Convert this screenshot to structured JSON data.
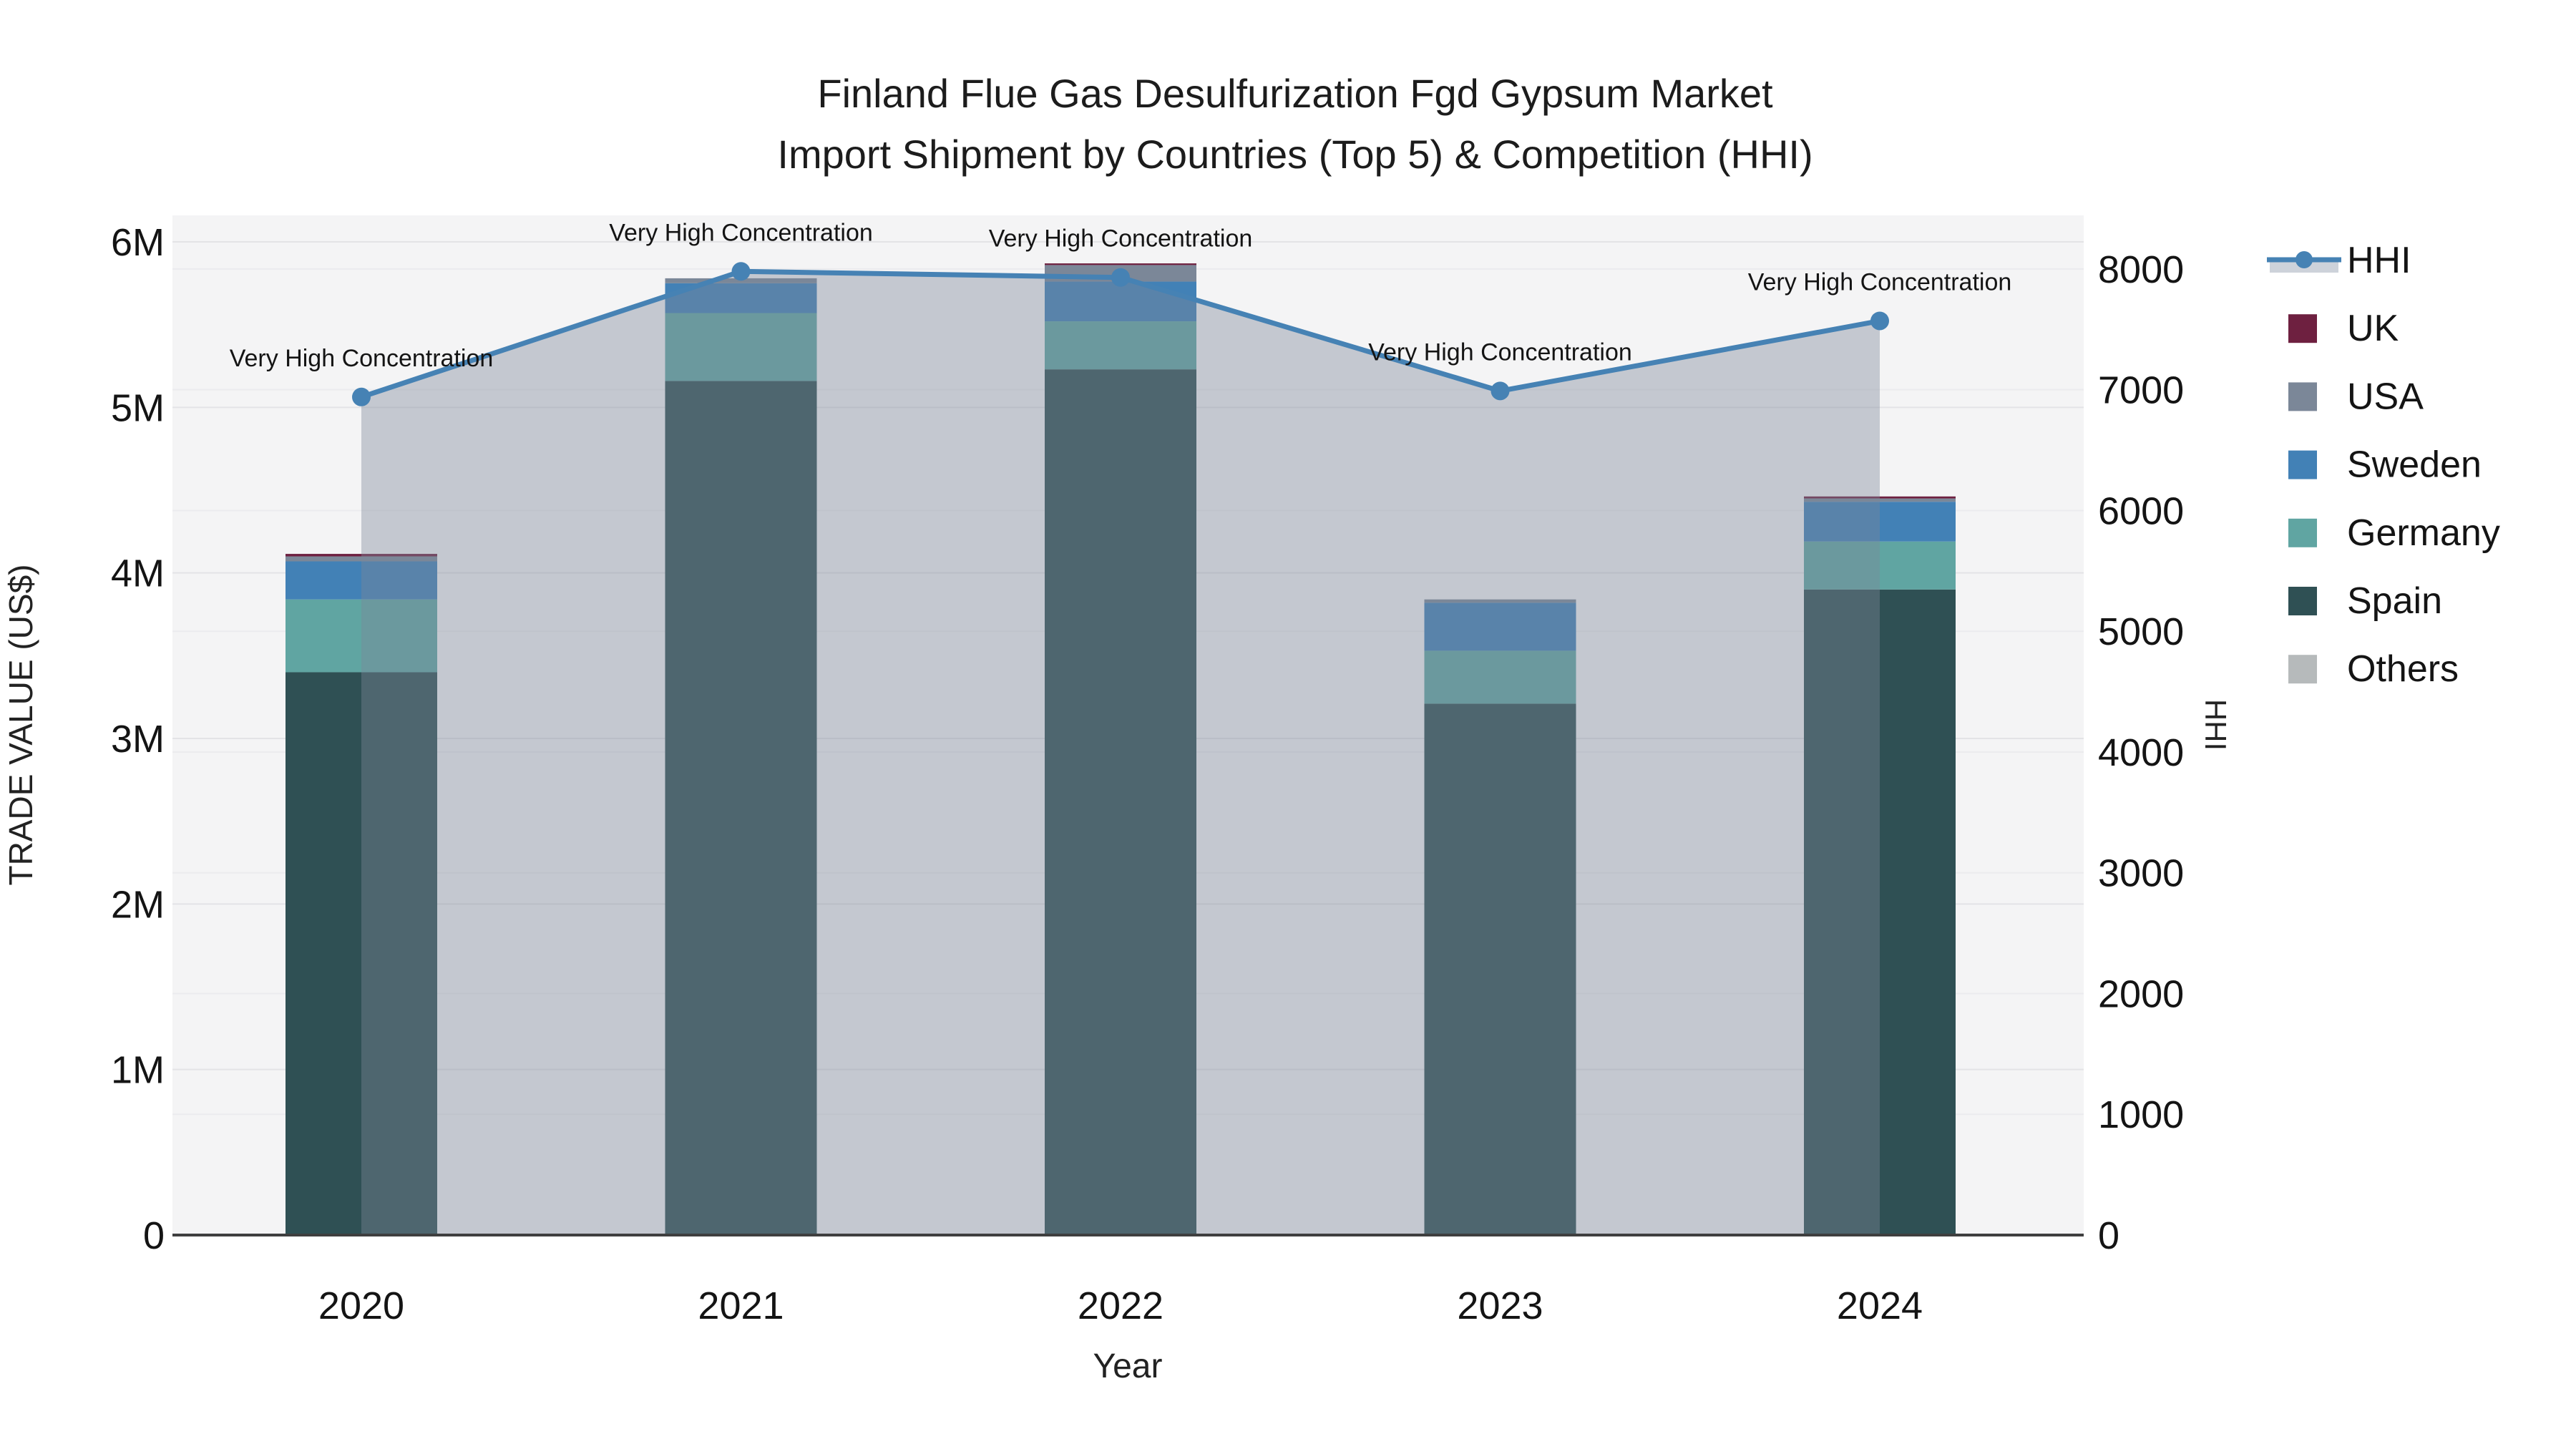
{
  "figure": {
    "background": "#ffffff"
  },
  "title": {
    "line1": "Finland Flue Gas Desulfurization Fgd Gypsum Market",
    "line2": "Import Shipment by Countries (Top 5) & Competition (HHI)"
  },
  "axes": {
    "x": {
      "title": "Year",
      "categories": [
        "2020",
        "2021",
        "2022",
        "2023",
        "2024"
      ]
    },
    "y_left": {
      "title": "TRADE VALUE (US$)",
      "tick_labels": [
        "0",
        "1M",
        "2M",
        "3M",
        "4M",
        "5M",
        "6M"
      ]
    },
    "y_right": {
      "title": "HHI",
      "tick_labels": [
        "0",
        "1000",
        "2000",
        "3000",
        "4000",
        "5000",
        "6000",
        "7000",
        "8000"
      ]
    }
  },
  "legend": {
    "items": [
      {
        "label": "HHI",
        "type": "line",
        "color": "#4682B4",
        "band_color": "#CDD2DA"
      },
      {
        "label": "UK",
        "type": "swatch",
        "color": "#6E2040"
      },
      {
        "label": "USA",
        "type": "swatch",
        "color": "#7B8798"
      },
      {
        "label": "Sweden",
        "type": "swatch",
        "color": "#4281B6"
      },
      {
        "label": "Germany",
        "type": "swatch",
        "color": "#60A5A2"
      },
      {
        "label": "Spain",
        "type": "swatch",
        "color": "#2F5054"
      },
      {
        "label": "Others",
        "type": "swatch",
        "color": "#B6BABB"
      }
    ]
  },
  "chart_data": {
    "type": "combo",
    "categories": [
      "2020",
      "2021",
      "2022",
      "2023",
      "2024"
    ],
    "bar_value_unit": "million US$",
    "bar_stack_order_bottom_to_top": [
      "Spain",
      "Germany",
      "Sweden",
      "USA",
      "UK",
      "Others"
    ],
    "bar_series": [
      {
        "name": "Spain",
        "color": "#2F5054",
        "values": [
          3.4,
          5.16,
          5.23,
          3.21,
          3.9
        ]
      },
      {
        "name": "Germany",
        "color": "#60A5A2",
        "values": [
          0.44,
          0.41,
          0.29,
          0.32,
          0.29
        ]
      },
      {
        "name": "Sweden",
        "color": "#4281B6",
        "values": [
          0.23,
          0.18,
          0.24,
          0.29,
          0.24
        ]
      },
      {
        "name": "USA",
        "color": "#7B8798",
        "values": [
          0.03,
          0.03,
          0.1,
          0.02,
          0.02
        ]
      },
      {
        "name": "UK",
        "color": "#6E2040",
        "values": [
          0.015,
          0,
          0.01,
          0,
          0.012
        ]
      },
      {
        "name": "Others",
        "color": "#B6BABB",
        "values": [
          0,
          0,
          0,
          0,
          0
        ]
      }
    ],
    "line_series": {
      "name": "HHI",
      "axis": "right",
      "color": "#4682B4",
      "area_fill": "rgba(124,136,152,0.40)",
      "values": [
        6940,
        7980,
        7930,
        6990,
        7570
      ]
    },
    "annotations": [
      "Very High Concentration",
      "Very High Concentration",
      "Very High Concentration",
      "Very High Concentration",
      "Very High Concentration"
    ],
    "ylim_left_millions": [
      0,
      6.16
    ],
    "ylim_right": [
      0,
      8444
    ],
    "grid": true,
    "legend_position": "right"
  }
}
